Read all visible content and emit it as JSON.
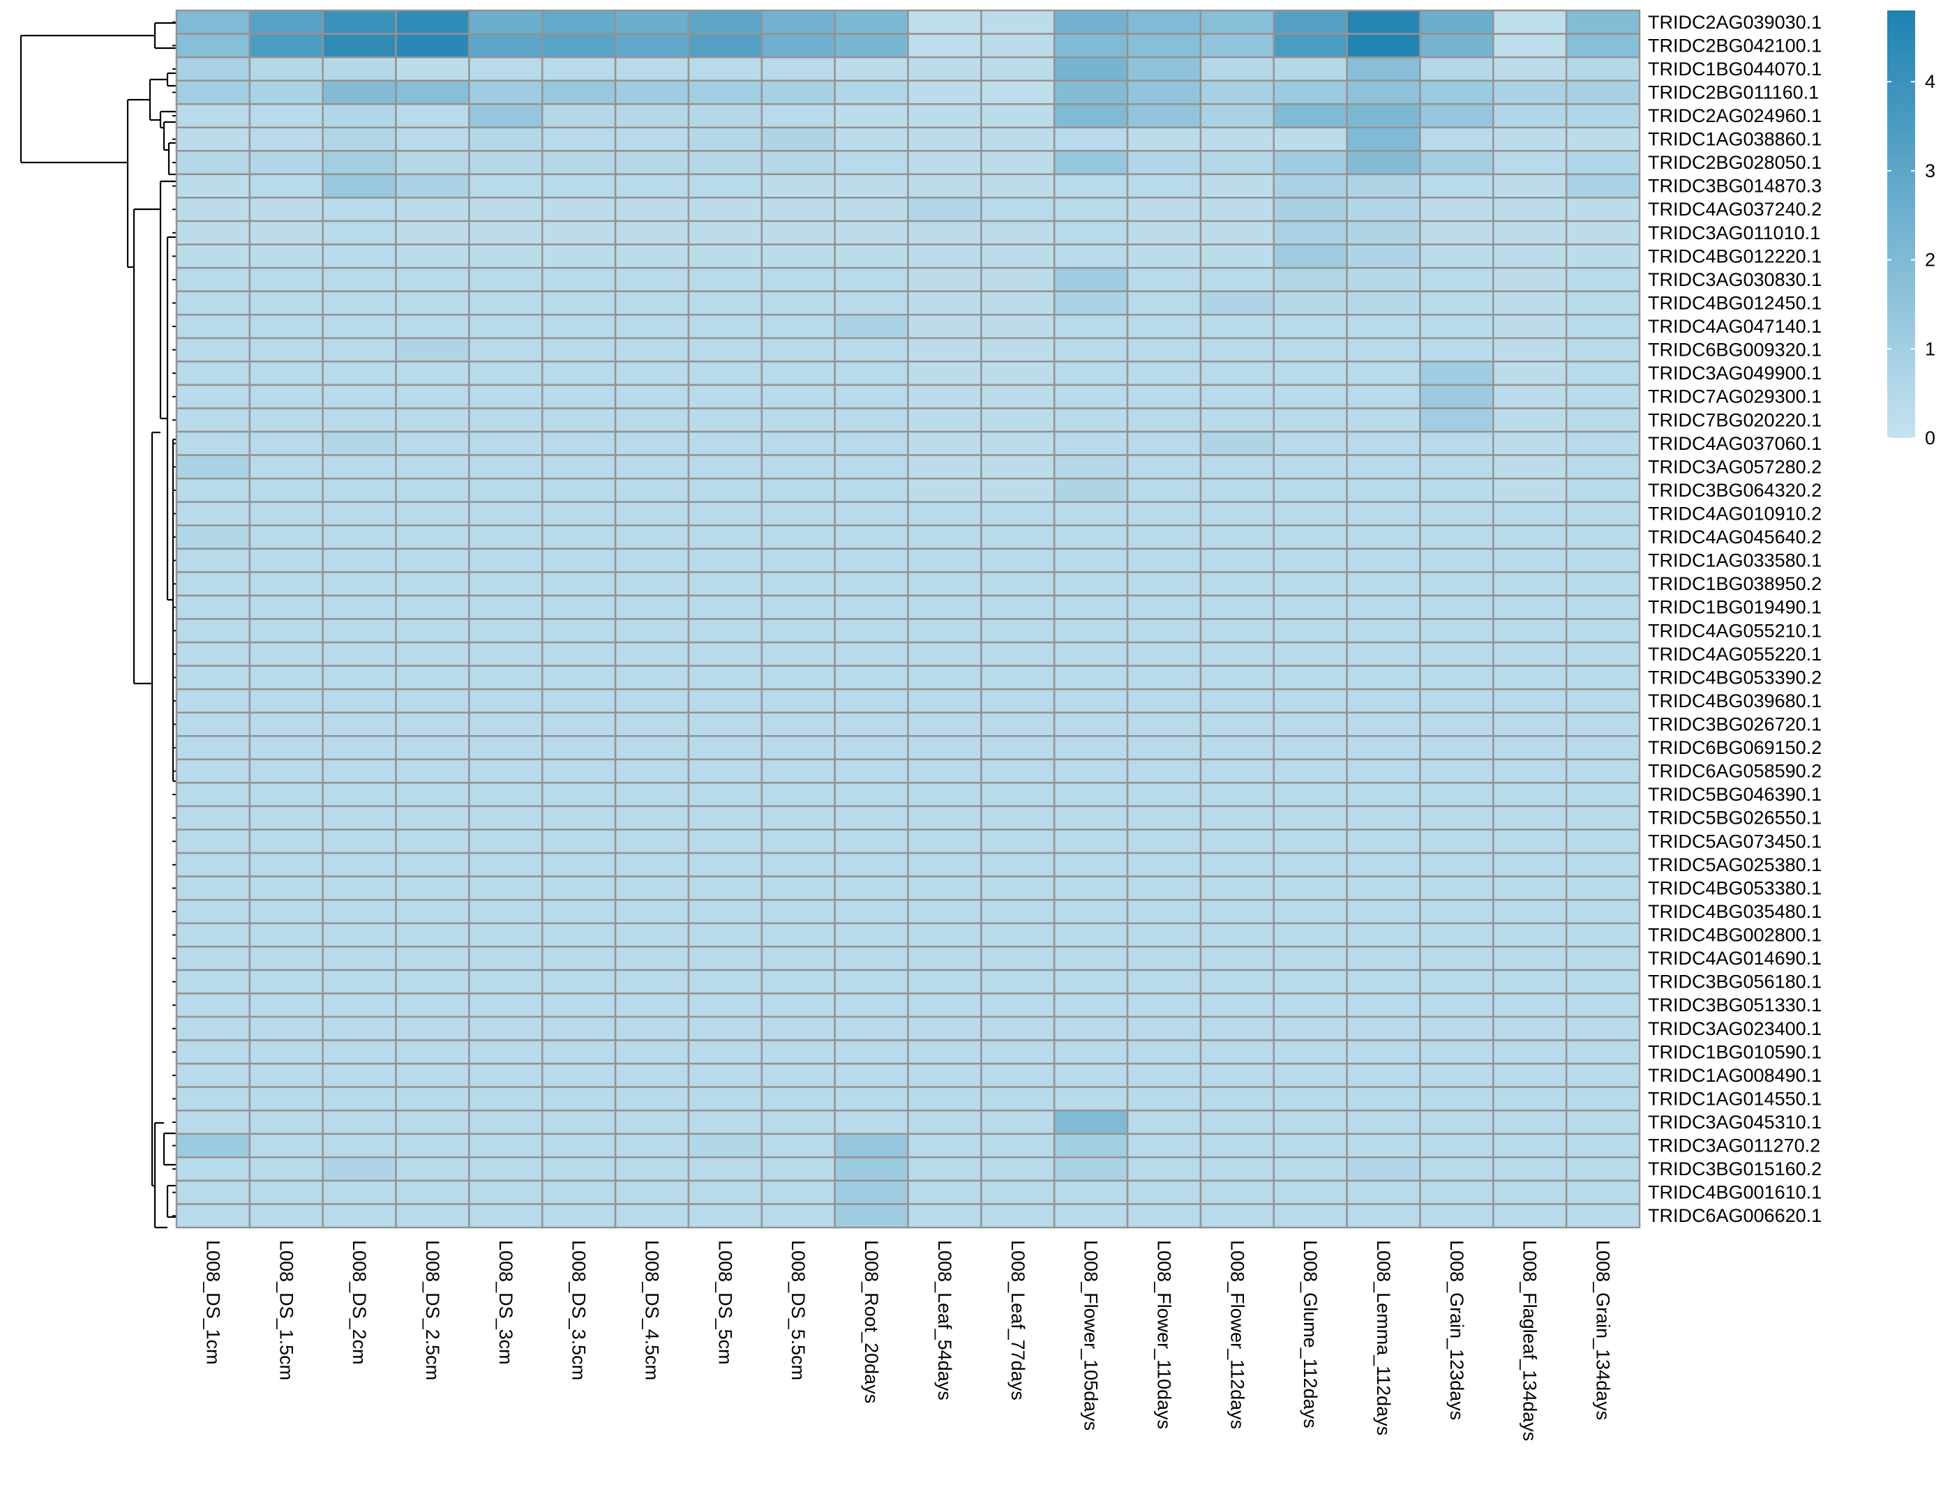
{
  "chart_data": {
    "type": "heatmap",
    "title": "",
    "xlabel": "",
    "ylabel": "",
    "columns": [
      "L008_DS_1cm",
      "L008_DS_1.5cm",
      "L008_DS_2cm",
      "L008_DS_2.5cm",
      "L008_DS_3cm",
      "L008_DS_3.5cm",
      "L008_DS_4.5cm",
      "L008_DS_5cm",
      "L008_DS_5.5cm",
      "L008_Root_20days",
      "L008_Leaf_54days",
      "L008_Leaf_77days",
      "L008_Flower_105days",
      "L008_Flower_110days",
      "L008_Flower_112days",
      "L008_Glume_112days",
      "L008_Lemma_112days",
      "L008_Grain_123days",
      "L008_Flagleaf_134days",
      "L008_Grain_134days"
    ],
    "rows": [
      "TRIDC2AG039030.1",
      "TRIDC2BG042100.1",
      "TRIDC1BG044070.1",
      "TRIDC2BG011160.1",
      "TRIDC2AG024960.1",
      "TRIDC1AG038860.1",
      "TRIDC2BG028050.1",
      "TRIDC3BG014870.3",
      "TRIDC4AG037240.2",
      "TRIDC3AG011010.1",
      "TRIDC4BG012220.1",
      "TRIDC3AG030830.1",
      "TRIDC4BG012450.1",
      "TRIDC4AG047140.1",
      "TRIDC6BG009320.1",
      "TRIDC3AG049900.1",
      "TRIDC7AG029300.1",
      "TRIDC7BG020220.1",
      "TRIDC4AG037060.1",
      "TRIDC3AG057280.2",
      "TRIDC3BG064320.2",
      "TRIDC4AG010910.2",
      "TRIDC4AG045640.2",
      "TRIDC1AG033580.1",
      "TRIDC1BG038950.2",
      "TRIDC1BG019490.1",
      "TRIDC4AG055210.1",
      "TRIDC4AG055220.1",
      "TRIDC4BG053390.2",
      "TRIDC4BG039680.1",
      "TRIDC3BG026720.1",
      "TRIDC6BG069150.2",
      "TRIDC6AG058590.2",
      "TRIDC5BG046390.1",
      "TRIDC5BG026550.1",
      "TRIDC5AG073450.1",
      "TRIDC5AG025380.1",
      "TRIDC4BG053380.1",
      "TRIDC4BG035480.1",
      "TRIDC4BG002800.1",
      "TRIDC4AG014690.1",
      "TRIDC3BG056180.1",
      "TRIDC3BG051330.1",
      "TRIDC3AG023400.1",
      "TRIDC1BG010590.1",
      "TRIDC1AG008490.1",
      "TRIDC1AG014550.1",
      "TRIDC3AG045310.1",
      "TRIDC3AG011270.2",
      "TRIDC3BG015160.2",
      "TRIDC4BG001610.1",
      "TRIDC6AG006620.1"
    ],
    "values": [
      [
        2.0,
        3.2,
        4.0,
        4.3,
        2.6,
        2.8,
        2.6,
        3.0,
        2.4,
        2.1,
        0.2,
        0.3,
        2.4,
        2.0,
        1.8,
        3.3,
        4.6,
        2.6,
        0.2,
        1.9
      ],
      [
        1.8,
        3.5,
        4.3,
        4.5,
        3.0,
        3.1,
        2.9,
        3.3,
        2.5,
        2.2,
        0.2,
        0.3,
        2.0,
        1.8,
        1.5,
        3.5,
        4.7,
        2.3,
        0.2,
        1.8
      ],
      [
        0.8,
        0.5,
        0.5,
        0.3,
        0.4,
        0.4,
        0.4,
        0.4,
        0.4,
        0.3,
        0.3,
        0.3,
        2.3,
        1.6,
        0.5,
        0.5,
        1.8,
        0.5,
        0.3,
        0.5
      ],
      [
        1.0,
        0.8,
        1.9,
        1.8,
        1.1,
        1.3,
        1.1,
        1.0,
        0.9,
        0.6,
        0.3,
        0.2,
        1.9,
        1.5,
        0.9,
        1.2,
        1.6,
        1.2,
        0.8,
        0.9
      ],
      [
        0.4,
        0.4,
        0.6,
        0.4,
        1.4,
        0.5,
        0.5,
        0.5,
        0.4,
        0.3,
        0.3,
        0.3,
        2.0,
        1.5,
        0.8,
        2.0,
        2.1,
        1.4,
        0.6,
        0.6
      ],
      [
        0.3,
        0.4,
        0.6,
        0.4,
        0.5,
        0.4,
        0.4,
        0.5,
        0.7,
        0.3,
        0.3,
        0.3,
        0.4,
        0.3,
        0.3,
        0.3,
        2.0,
        0.4,
        0.3,
        0.3
      ],
      [
        0.5,
        0.6,
        1.0,
        0.5,
        0.5,
        0.5,
        0.5,
        0.5,
        0.5,
        0.4,
        0.3,
        0.3,
        1.4,
        0.6,
        0.5,
        1.1,
        1.9,
        1.0,
        0.4,
        0.6
      ],
      [
        0.3,
        0.4,
        1.3,
        0.8,
        0.4,
        0.4,
        0.4,
        0.4,
        0.3,
        0.3,
        0.3,
        0.3,
        0.4,
        0.4,
        0.3,
        0.8,
        0.7,
        0.4,
        0.3,
        0.8
      ],
      [
        0.3,
        0.3,
        0.4,
        0.3,
        0.3,
        0.3,
        0.3,
        0.3,
        0.3,
        0.3,
        0.6,
        0.4,
        0.4,
        0.3,
        0.3,
        0.9,
        0.6,
        0.3,
        0.3,
        0.3
      ],
      [
        0.3,
        0.3,
        0.4,
        0.3,
        0.3,
        0.3,
        0.3,
        0.3,
        0.3,
        0.3,
        0.3,
        0.3,
        0.4,
        0.3,
        0.3,
        0.8,
        0.7,
        0.3,
        0.3,
        0.3
      ],
      [
        0.3,
        0.3,
        0.4,
        0.3,
        0.3,
        0.3,
        0.3,
        0.3,
        0.3,
        0.3,
        0.3,
        0.3,
        0.4,
        0.3,
        0.3,
        1.1,
        0.7,
        0.3,
        0.3,
        0.3
      ],
      [
        0.4,
        0.4,
        0.4,
        0.4,
        0.4,
        0.4,
        0.4,
        0.4,
        0.4,
        0.4,
        0.3,
        0.3,
        1.1,
        0.4,
        0.4,
        0.6,
        0.5,
        0.4,
        0.3,
        0.4
      ],
      [
        0.4,
        0.4,
        0.4,
        0.4,
        0.4,
        0.4,
        0.4,
        0.4,
        0.4,
        0.4,
        0.3,
        0.3,
        0.8,
        0.4,
        0.7,
        0.5,
        0.5,
        0.4,
        0.3,
        0.4
      ],
      [
        0.4,
        0.4,
        0.4,
        0.4,
        0.4,
        0.4,
        0.4,
        0.4,
        0.4,
        0.8,
        0.3,
        0.3,
        0.4,
        0.4,
        0.4,
        0.4,
        0.4,
        0.4,
        0.3,
        0.4
      ],
      [
        0.4,
        0.4,
        0.4,
        0.7,
        0.4,
        0.4,
        0.4,
        0.4,
        0.4,
        0.4,
        0.3,
        0.3,
        0.4,
        0.4,
        0.4,
        0.4,
        0.4,
        0.4,
        0.3,
        0.4
      ],
      [
        0.4,
        0.4,
        0.4,
        0.4,
        0.4,
        0.4,
        0.4,
        0.4,
        0.4,
        0.4,
        0.3,
        0.3,
        0.4,
        0.4,
        0.4,
        0.4,
        0.4,
        1.1,
        0.3,
        0.4
      ],
      [
        0.4,
        0.4,
        0.4,
        0.4,
        0.4,
        0.4,
        0.4,
        0.4,
        0.4,
        0.4,
        0.3,
        0.3,
        0.4,
        0.4,
        0.4,
        0.4,
        0.4,
        1.2,
        0.3,
        0.4
      ],
      [
        0.4,
        0.4,
        0.4,
        0.4,
        0.4,
        0.4,
        0.4,
        0.4,
        0.4,
        0.4,
        0.3,
        0.3,
        0.4,
        0.4,
        0.4,
        0.4,
        0.4,
        1.0,
        0.3,
        0.4
      ],
      [
        0.4,
        0.4,
        0.6,
        0.4,
        0.4,
        0.4,
        0.4,
        0.4,
        0.4,
        0.4,
        0.3,
        0.3,
        0.4,
        0.4,
        0.7,
        0.4,
        0.4,
        0.4,
        0.3,
        0.4
      ],
      [
        0.8,
        0.4,
        0.4,
        0.4,
        0.4,
        0.4,
        0.4,
        0.4,
        0.4,
        0.4,
        0.3,
        0.3,
        0.5,
        0.4,
        0.4,
        0.4,
        0.4,
        0.4,
        0.3,
        0.4
      ],
      [
        0.4,
        0.4,
        0.4,
        0.4,
        0.4,
        0.4,
        0.4,
        0.4,
        0.4,
        0.4,
        0.3,
        0.3,
        0.7,
        0.4,
        0.4,
        0.4,
        0.4,
        0.4,
        0.3,
        0.4
      ],
      [
        0.4,
        0.4,
        0.4,
        0.4,
        0.4,
        0.4,
        0.4,
        0.4,
        0.4,
        0.4,
        0.4,
        0.4,
        0.4,
        0.4,
        0.4,
        0.4,
        0.4,
        0.4,
        0.4,
        0.4
      ],
      [
        0.6,
        0.4,
        0.4,
        0.4,
        0.4,
        0.4,
        0.4,
        0.4,
        0.4,
        0.4,
        0.4,
        0.4,
        0.4,
        0.4,
        0.4,
        0.4,
        0.4,
        0.4,
        0.4,
        0.4
      ],
      [
        0.4,
        0.4,
        0.4,
        0.4,
        0.4,
        0.4,
        0.4,
        0.4,
        0.4,
        0.4,
        0.4,
        0.4,
        0.4,
        0.4,
        0.4,
        0.4,
        0.4,
        0.4,
        0.4,
        0.4
      ],
      [
        0.4,
        0.4,
        0.4,
        0.4,
        0.4,
        0.4,
        0.4,
        0.4,
        0.4,
        0.4,
        0.4,
        0.4,
        0.4,
        0.4,
        0.4,
        0.4,
        0.4,
        0.4,
        0.4,
        0.4
      ],
      [
        0.4,
        0.4,
        0.4,
        0.4,
        0.4,
        0.4,
        0.4,
        0.4,
        0.4,
        0.4,
        0.4,
        0.4,
        0.4,
        0.4,
        0.4,
        0.4,
        0.4,
        0.4,
        0.4,
        0.4
      ],
      [
        0.4,
        0.4,
        0.4,
        0.4,
        0.4,
        0.4,
        0.4,
        0.4,
        0.4,
        0.4,
        0.4,
        0.4,
        0.4,
        0.4,
        0.4,
        0.4,
        0.4,
        0.4,
        0.4,
        0.4
      ],
      [
        0.4,
        0.4,
        0.4,
        0.4,
        0.4,
        0.4,
        0.4,
        0.4,
        0.4,
        0.4,
        0.4,
        0.4,
        0.4,
        0.4,
        0.4,
        0.4,
        0.4,
        0.4,
        0.4,
        0.4
      ],
      [
        0.4,
        0.4,
        0.4,
        0.4,
        0.4,
        0.4,
        0.4,
        0.4,
        0.4,
        0.4,
        0.4,
        0.4,
        0.4,
        0.4,
        0.4,
        0.4,
        0.4,
        0.4,
        0.4,
        0.4
      ],
      [
        0.4,
        0.4,
        0.4,
        0.4,
        0.4,
        0.4,
        0.4,
        0.4,
        0.4,
        0.4,
        0.4,
        0.4,
        0.4,
        0.4,
        0.4,
        0.4,
        0.4,
        0.4,
        0.4,
        0.4
      ],
      [
        0.4,
        0.4,
        0.4,
        0.4,
        0.4,
        0.4,
        0.4,
        0.4,
        0.4,
        0.4,
        0.4,
        0.4,
        0.4,
        0.4,
        0.4,
        0.4,
        0.4,
        0.4,
        0.4,
        0.4
      ],
      [
        0.4,
        0.4,
        0.4,
        0.4,
        0.4,
        0.4,
        0.4,
        0.4,
        0.4,
        0.4,
        0.4,
        0.4,
        0.4,
        0.4,
        0.4,
        0.4,
        0.4,
        0.4,
        0.4,
        0.4
      ],
      [
        0.4,
        0.4,
        0.4,
        0.4,
        0.4,
        0.4,
        0.4,
        0.4,
        0.4,
        0.4,
        0.4,
        0.4,
        0.4,
        0.4,
        0.4,
        0.4,
        0.4,
        0.4,
        0.4,
        0.4
      ],
      [
        0.4,
        0.4,
        0.4,
        0.4,
        0.4,
        0.4,
        0.4,
        0.4,
        0.4,
        0.4,
        0.4,
        0.4,
        0.4,
        0.4,
        0.4,
        0.4,
        0.4,
        0.4,
        0.4,
        0.4
      ],
      [
        0.4,
        0.4,
        0.4,
        0.4,
        0.4,
        0.4,
        0.4,
        0.4,
        0.4,
        0.4,
        0.4,
        0.4,
        0.4,
        0.4,
        0.4,
        0.4,
        0.4,
        0.4,
        0.4,
        0.4
      ],
      [
        0.4,
        0.4,
        0.4,
        0.4,
        0.4,
        0.4,
        0.4,
        0.4,
        0.4,
        0.4,
        0.4,
        0.4,
        0.4,
        0.4,
        0.4,
        0.4,
        0.4,
        0.4,
        0.4,
        0.4
      ],
      [
        0.4,
        0.4,
        0.4,
        0.4,
        0.4,
        0.4,
        0.4,
        0.4,
        0.4,
        0.4,
        0.4,
        0.4,
        0.4,
        0.4,
        0.4,
        0.4,
        0.4,
        0.4,
        0.4,
        0.4
      ],
      [
        0.4,
        0.4,
        0.4,
        0.4,
        0.4,
        0.4,
        0.4,
        0.4,
        0.4,
        0.4,
        0.4,
        0.4,
        0.4,
        0.4,
        0.4,
        0.4,
        0.4,
        0.4,
        0.4,
        0.4
      ],
      [
        0.4,
        0.4,
        0.4,
        0.4,
        0.4,
        0.4,
        0.4,
        0.4,
        0.4,
        0.4,
        0.4,
        0.4,
        0.4,
        0.4,
        0.4,
        0.4,
        0.4,
        0.4,
        0.4,
        0.4
      ],
      [
        0.4,
        0.4,
        0.4,
        0.4,
        0.4,
        0.4,
        0.4,
        0.4,
        0.4,
        0.4,
        0.4,
        0.4,
        0.4,
        0.4,
        0.4,
        0.4,
        0.4,
        0.4,
        0.4,
        0.4
      ],
      [
        0.4,
        0.4,
        0.4,
        0.4,
        0.4,
        0.4,
        0.4,
        0.4,
        0.4,
        0.4,
        0.4,
        0.4,
        0.4,
        0.4,
        0.4,
        0.4,
        0.4,
        0.4,
        0.4,
        0.4
      ],
      [
        0.4,
        0.4,
        0.4,
        0.4,
        0.4,
        0.4,
        0.4,
        0.4,
        0.4,
        0.4,
        0.4,
        0.4,
        0.4,
        0.4,
        0.4,
        0.4,
        0.4,
        0.4,
        0.4,
        0.4
      ],
      [
        0.4,
        0.4,
        0.4,
        0.4,
        0.4,
        0.4,
        0.4,
        0.4,
        0.4,
        0.4,
        0.4,
        0.4,
        0.4,
        0.4,
        0.4,
        0.4,
        0.4,
        0.4,
        0.4,
        0.4
      ],
      [
        0.4,
        0.4,
        0.4,
        0.4,
        0.4,
        0.4,
        0.4,
        0.4,
        0.4,
        0.4,
        0.4,
        0.4,
        0.4,
        0.4,
        0.4,
        0.4,
        0.4,
        0.4,
        0.4,
        0.4
      ],
      [
        0.4,
        0.4,
        0.4,
        0.4,
        0.4,
        0.4,
        0.4,
        0.4,
        0.4,
        0.4,
        0.4,
        0.4,
        0.4,
        0.4,
        0.4,
        0.4,
        0.4,
        0.4,
        0.4,
        0.4
      ],
      [
        0.4,
        0.4,
        0.4,
        0.4,
        0.4,
        0.4,
        0.4,
        0.4,
        0.4,
        0.4,
        0.4,
        0.4,
        0.4,
        0.4,
        0.4,
        0.4,
        0.4,
        0.4,
        0.4,
        0.4
      ],
      [
        0.4,
        0.4,
        0.4,
        0.4,
        0.4,
        0.4,
        0.4,
        0.4,
        0.4,
        0.4,
        0.4,
        0.4,
        0.4,
        0.4,
        0.4,
        0.4,
        0.4,
        0.4,
        0.4,
        0.4
      ],
      [
        0.4,
        0.4,
        0.4,
        0.4,
        0.4,
        0.4,
        0.4,
        0.4,
        0.4,
        0.4,
        0.4,
        0.4,
        2.0,
        0.4,
        0.4,
        0.4,
        0.4,
        0.4,
        0.4,
        0.4
      ],
      [
        1.2,
        0.4,
        0.4,
        0.4,
        0.4,
        0.4,
        0.4,
        0.6,
        0.4,
        1.4,
        0.4,
        0.4,
        1.0,
        0.4,
        0.4,
        0.4,
        0.4,
        0.4,
        0.4,
        0.4
      ],
      [
        0.4,
        0.4,
        0.7,
        0.4,
        0.4,
        0.4,
        0.4,
        0.4,
        0.4,
        1.2,
        0.4,
        0.4,
        0.8,
        0.4,
        0.4,
        0.4,
        0.6,
        0.4,
        0.4,
        0.4
      ],
      [
        0.4,
        0.4,
        0.4,
        0.4,
        0.4,
        0.4,
        0.4,
        0.4,
        0.4,
        1.1,
        0.4,
        0.4,
        0.4,
        0.4,
        0.4,
        0.4,
        0.4,
        0.4,
        0.4,
        0.4
      ],
      [
        0.4,
        0.4,
        0.4,
        0.4,
        0.4,
        0.4,
        0.4,
        0.4,
        0.4,
        1.1,
        0.4,
        0.4,
        0.4,
        0.4,
        0.4,
        0.4,
        0.4,
        0.4,
        0.4,
        0.4
      ]
    ],
    "color_scale": {
      "min": 0,
      "max": 4.8,
      "low_color": "#c6e2ef",
      "high_color": "#1e82b1"
    },
    "cell_border_color": "#939393",
    "legend": {
      "position": "top-right",
      "ticks": [
        0,
        1,
        2,
        3,
        4
      ]
    },
    "row_dendrogram": true,
    "grid": false
  }
}
